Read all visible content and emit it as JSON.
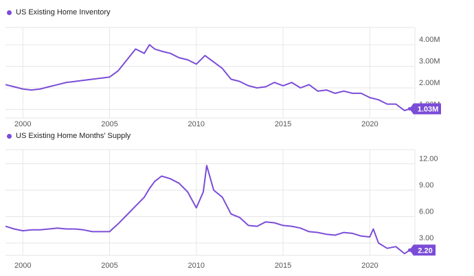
{
  "colors": {
    "series": "#7b4cd8",
    "grid": "#e6e6e6",
    "badge": "#7b4cd8"
  },
  "chart_data": [
    {
      "type": "line",
      "legend": "US Existing Home Inventory",
      "x_ticks": [
        "2000",
        "2005",
        "2010",
        "2015",
        "2020"
      ],
      "y_ticks": [
        "1.00M",
        "2.00M",
        "3.00M",
        "4.00M"
      ],
      "ylim": [
        0.6,
        4.8
      ],
      "xlim": [
        1999.0,
        2022.6
      ],
      "last_value_label": "1.03M",
      "series": [
        {
          "x": [
            1999.0,
            1999.5,
            2000.0,
            2000.5,
            2001.0,
            2001.5,
            2002.0,
            2002.5,
            2003.0,
            2003.5,
            2004.0,
            2004.5,
            2005.0,
            2005.5,
            2006.0,
            2006.5,
            2007.0,
            2007.3,
            2007.6,
            2008.0,
            2008.5,
            2009.0,
            2009.5,
            2010.0,
            2010.5,
            2011.0,
            2011.5,
            2012.0,
            2012.5,
            2013.0,
            2013.5,
            2014.0,
            2014.5,
            2015.0,
            2015.5,
            2016.0,
            2016.5,
            2017.0,
            2017.5,
            2018.0,
            2018.5,
            2019.0,
            2019.5,
            2020.0,
            2020.5,
            2021.0,
            2021.5,
            2022.0,
            2022.3
          ],
          "y": [
            2.15,
            2.05,
            1.95,
            1.9,
            1.95,
            2.05,
            2.15,
            2.25,
            2.3,
            2.35,
            2.4,
            2.45,
            2.5,
            2.8,
            3.3,
            3.8,
            3.6,
            4.0,
            3.8,
            3.7,
            3.6,
            3.4,
            3.3,
            3.1,
            3.5,
            3.2,
            2.9,
            2.4,
            2.3,
            2.1,
            2.0,
            2.05,
            2.25,
            2.1,
            2.25,
            2.0,
            2.15,
            1.85,
            1.9,
            1.75,
            1.85,
            1.75,
            1.75,
            1.55,
            1.45,
            1.25,
            1.25,
            0.95,
            1.03
          ]
        }
      ]
    },
    {
      "type": "line",
      "legend": "US Existing Home Months' Supply",
      "x_ticks": [
        "2000",
        "2005",
        "2010",
        "2015",
        "2020"
      ],
      "y_ticks": [
        "3.00",
        "6.00",
        "9.00",
        "12.00"
      ],
      "ylim": [
        1.6,
        13.6
      ],
      "xlim": [
        1999.0,
        2022.6
      ],
      "last_value_label": "2.20",
      "series": [
        {
          "x": [
            1999.0,
            1999.5,
            2000.0,
            2000.5,
            2001.0,
            2001.5,
            2002.0,
            2002.5,
            2003.0,
            2003.5,
            2004.0,
            2004.5,
            2005.0,
            2005.5,
            2006.0,
            2006.5,
            2007.0,
            2007.3,
            2007.6,
            2008.0,
            2008.5,
            2009.0,
            2009.5,
            2010.0,
            2010.4,
            2010.6,
            2011.0,
            2011.5,
            2012.0,
            2012.5,
            2013.0,
            2013.5,
            2014.0,
            2014.5,
            2015.0,
            2015.5,
            2016.0,
            2016.5,
            2017.0,
            2017.5,
            2018.0,
            2018.5,
            2019.0,
            2019.5,
            2020.0,
            2020.2,
            2020.5,
            2021.0,
            2021.5,
            2022.0,
            2022.3
          ],
          "y": [
            4.9,
            4.6,
            4.4,
            4.5,
            4.5,
            4.6,
            4.7,
            4.6,
            4.6,
            4.5,
            4.3,
            4.3,
            4.3,
            5.2,
            6.2,
            7.2,
            8.2,
            9.2,
            10.0,
            10.6,
            10.3,
            9.8,
            8.8,
            7.0,
            8.8,
            11.8,
            9.0,
            8.2,
            6.3,
            5.9,
            5.0,
            4.9,
            5.4,
            5.3,
            5.0,
            4.9,
            4.7,
            4.3,
            4.2,
            4.0,
            3.9,
            4.2,
            4.1,
            3.8,
            3.7,
            4.6,
            3.0,
            2.4,
            2.6,
            1.8,
            2.2
          ]
        }
      ]
    }
  ]
}
